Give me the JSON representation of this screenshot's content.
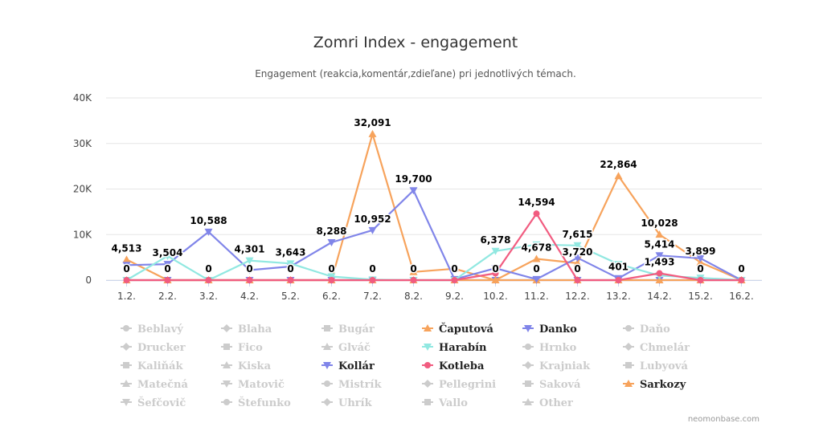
{
  "chart_data": {
    "type": "line",
    "title": "Zomri Index - engagement",
    "subtitle": "Engagement (reakcia,komentár,zdieľane) pri jednotlivých témach.",
    "categories": [
      "1.2.",
      "2.2.",
      "3.2.",
      "4.2.",
      "5.2.",
      "6.2.",
      "7.2.",
      "8.2.",
      "9.2.",
      "10.2.",
      "11.2.",
      "12.2.",
      "13.2.",
      "14.2.",
      "15.2.",
      "16.2."
    ],
    "ylim": [
      0,
      40000
    ],
    "yticks": [
      0,
      10000,
      20000,
      30000,
      40000
    ],
    "ytick_labels": [
      "0",
      "10K",
      "20K",
      "30K",
      "40K"
    ],
    "grid": true,
    "legend_position": "bottom",
    "series": [
      {
        "name": "Čaputová",
        "color": "#f7a35c",
        "marker": "triangle",
        "visible": true,
        "values": [
          4513,
          0,
          0,
          0,
          0,
          0,
          32091,
          1800,
          2500,
          0,
          4678,
          3720,
          22864,
          10028,
          3899,
          0
        ]
      },
      {
        "name": "Danko",
        "color": "#8085e9",
        "marker": "triangle-down",
        "visible": true,
        "values": [
          3300,
          3504,
          10588,
          2200,
          3000,
          8288,
          10952,
          19700,
          200,
          2600,
          200,
          4900,
          401,
          5414,
          4800,
          0
        ]
      },
      {
        "name": "Harabín",
        "color": "#91e8e1",
        "marker": "triangle-down",
        "visible": true,
        "values": [
          0,
          5300,
          0,
          4301,
          3643,
          800,
          100,
          0,
          0,
          6378,
          7800,
          7615,
          3500,
          1000,
          500,
          0
        ]
      },
      {
        "name": "Kotleba",
        "color": "#f15c80",
        "marker": "circle",
        "visible": true,
        "values": [
          0,
          0,
          0,
          0,
          0,
          0,
          0,
          0,
          0,
          1500,
          14594,
          0,
          0,
          1493,
          0,
          0
        ]
      },
      {
        "name": "Kollár",
        "color": "#8085e9",
        "marker": "triangle-down",
        "visible": true,
        "values": [
          0,
          0,
          0,
          0,
          0,
          0,
          0,
          0,
          0,
          0,
          0,
          0,
          0,
          0,
          0,
          0
        ]
      },
      {
        "name": "Sarkozy",
        "color": "#f7a35c",
        "marker": "triangle",
        "visible": true,
        "values": [
          0,
          0,
          0,
          0,
          0,
          0,
          0,
          0,
          0,
          0,
          0,
          0,
          0,
          0,
          0,
          0
        ]
      }
    ],
    "data_labels": [
      {
        "cat": 0,
        "value": 4513,
        "text": "4,513"
      },
      {
        "cat": 1,
        "value": 3504,
        "text": "3,504"
      },
      {
        "cat": 2,
        "value": 10588,
        "text": "10,588"
      },
      {
        "cat": 3,
        "value": 4301,
        "text": "4,301"
      },
      {
        "cat": 4,
        "value": 3643,
        "text": "3,643"
      },
      {
        "cat": 5,
        "value": 8288,
        "text": "8,288"
      },
      {
        "cat": 6,
        "value": 32091,
        "text": "32,091"
      },
      {
        "cat": 6,
        "value": 10952,
        "text": "10,952"
      },
      {
        "cat": 7,
        "value": 19700,
        "text": "19,700"
      },
      {
        "cat": 9,
        "value": 6378,
        "text": "6,378"
      },
      {
        "cat": 10,
        "value": 14594,
        "text": "14,594"
      },
      {
        "cat": 10,
        "value": 4678,
        "text": "4,678"
      },
      {
        "cat": 11,
        "value": 7615,
        "text": "7,615"
      },
      {
        "cat": 11,
        "value": 3720,
        "text": "3,720"
      },
      {
        "cat": 12,
        "value": 22864,
        "text": "22,864"
      },
      {
        "cat": 12,
        "value": 401,
        "text": "401"
      },
      {
        "cat": 13,
        "value": 10028,
        "text": "10,028"
      },
      {
        "cat": 13,
        "value": 5414,
        "text": "5,414"
      },
      {
        "cat": 13,
        "value": 1493,
        "text": "1,493"
      },
      {
        "cat": 14,
        "value": 3899,
        "text": "3,899"
      },
      {
        "cat": 0,
        "value": 0,
        "text": "0"
      },
      {
        "cat": 1,
        "value": 0,
        "text": "0"
      },
      {
        "cat": 2,
        "value": 0,
        "text": "0"
      },
      {
        "cat": 3,
        "value": 0,
        "text": "0"
      },
      {
        "cat": 4,
        "value": 0,
        "text": "0"
      },
      {
        "cat": 5,
        "value": 0,
        "text": "0"
      },
      {
        "cat": 6,
        "value": 0,
        "text": "0"
      },
      {
        "cat": 7,
        "value": 0,
        "text": "0"
      },
      {
        "cat": 8,
        "value": 0,
        "text": "0"
      },
      {
        "cat": 9,
        "value": 0,
        "text": "0"
      },
      {
        "cat": 10,
        "value": 0,
        "text": "0"
      },
      {
        "cat": 11,
        "value": 0,
        "text": "0"
      },
      {
        "cat": 14,
        "value": 0,
        "text": "0"
      },
      {
        "cat": 15,
        "value": 0,
        "text": "0"
      }
    ]
  },
  "legend": {
    "active_color": "#222222",
    "hidden_color": "#cccccc",
    "items": [
      {
        "label": "Beblavý",
        "marker": "circle",
        "active": false
      },
      {
        "label": "Blaha",
        "marker": "diamond",
        "active": false
      },
      {
        "label": "Bugár",
        "marker": "square",
        "active": false
      },
      {
        "label": "Čaputová",
        "marker": "triangle",
        "active": true,
        "color": "#f7a35c"
      },
      {
        "label": "Danko",
        "marker": "triangle-down",
        "active": true,
        "color": "#8085e9"
      },
      {
        "label": "Daňo",
        "marker": "circle",
        "active": false
      },
      {
        "label": "Drucker",
        "marker": "diamond",
        "active": false
      },
      {
        "label": "Fico",
        "marker": "square",
        "active": false
      },
      {
        "label": "Glváč",
        "marker": "triangle",
        "active": false
      },
      {
        "label": "Harabín",
        "marker": "triangle-down",
        "active": true,
        "color": "#91e8e1"
      },
      {
        "label": "Hrnko",
        "marker": "circle",
        "active": false
      },
      {
        "label": "Chmelár",
        "marker": "diamond",
        "active": false
      },
      {
        "label": "Kaliňák",
        "marker": "square",
        "active": false
      },
      {
        "label": "Kiska",
        "marker": "triangle",
        "active": false
      },
      {
        "label": "Kollár",
        "marker": "triangle-down",
        "active": true,
        "color": "#8085e9"
      },
      {
        "label": "Kotleba",
        "marker": "circle",
        "active": true,
        "color": "#f15c80"
      },
      {
        "label": "Krajniak",
        "marker": "diamond",
        "active": false
      },
      {
        "label": "Lubyová",
        "marker": "square",
        "active": false
      },
      {
        "label": "Matečná",
        "marker": "triangle",
        "active": false
      },
      {
        "label": "Matovič",
        "marker": "triangle-down",
        "active": false
      },
      {
        "label": "Mistrík",
        "marker": "circle",
        "active": false
      },
      {
        "label": "Pellegrini",
        "marker": "diamond",
        "active": false
      },
      {
        "label": "Saková",
        "marker": "square",
        "active": false
      },
      {
        "label": "Sarkozy",
        "marker": "triangle",
        "active": true,
        "color": "#f7a35c"
      },
      {
        "label": "Šefčovič",
        "marker": "triangle-down",
        "active": false
      },
      {
        "label": "Štefunko",
        "marker": "circle",
        "active": false
      },
      {
        "label": "Uhrík",
        "marker": "diamond",
        "active": false
      },
      {
        "label": "Vallo",
        "marker": "square",
        "active": false
      },
      {
        "label": "Other",
        "marker": "triangle",
        "active": false
      }
    ]
  },
  "credit": "neomonbase.com"
}
